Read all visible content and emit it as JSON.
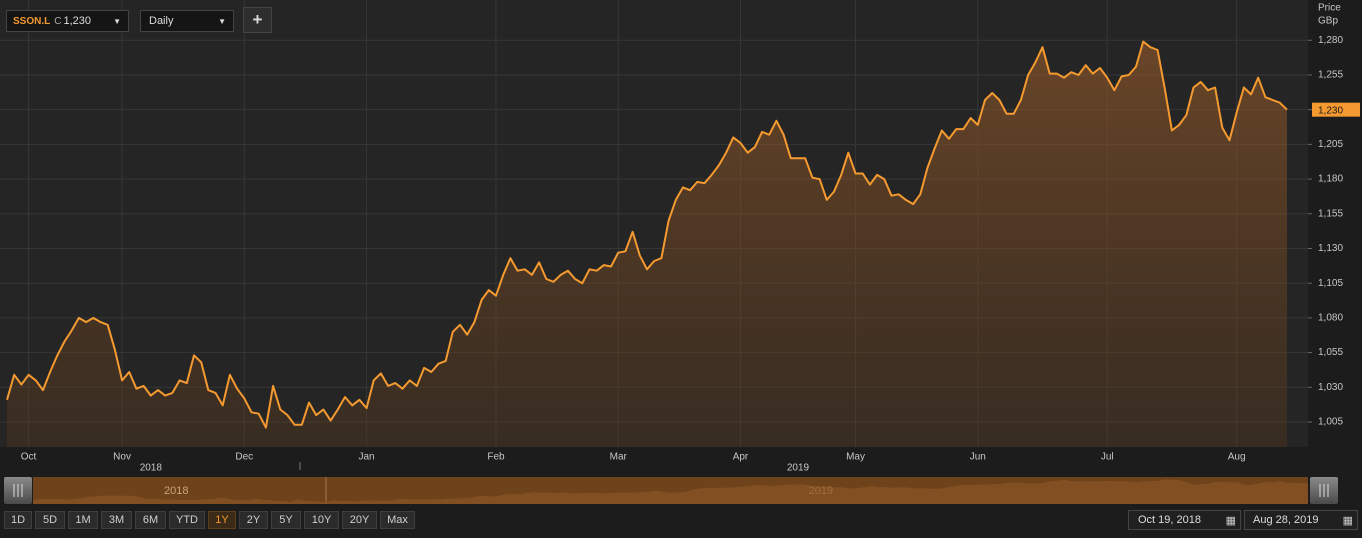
{
  "ui": {
    "close_prefix": "C",
    "interval": "Daily",
    "add_button": "+",
    "price_label": "Price",
    "currency": "GBp",
    "ranges": [
      "1D",
      "5D",
      "1M",
      "3M",
      "6M",
      "YTD",
      "1Y",
      "2Y",
      "5Y",
      "10Y",
      "20Y",
      "Max"
    ],
    "active_range": "1Y",
    "start_date": "Oct 19, 2018",
    "end_date": "Aug 28, 2019"
  },
  "chart_data": {
    "type": "line",
    "categories": [
      null,
      null,
      null,
      "Oct",
      null,
      null,
      null,
      null,
      null,
      null,
      null,
      null,
      null,
      null,
      null,
      null,
      "Nov",
      null,
      null,
      null,
      null,
      null,
      null,
      null,
      null,
      null,
      null,
      null,
      null,
      null,
      null,
      null,
      null,
      "Dec",
      null,
      null,
      null,
      null,
      null,
      null,
      null,
      null,
      null,
      null,
      null,
      null,
      null,
      null,
      null,
      null,
      "Jan",
      null,
      null,
      null,
      null,
      null,
      null,
      null,
      null,
      null,
      null,
      null,
      null,
      null,
      null,
      null,
      null,
      null,
      "Feb",
      null,
      null,
      null,
      null,
      null,
      null,
      null,
      null,
      null,
      null,
      null,
      null,
      null,
      null,
      null,
      null,
      "Mar",
      null,
      null,
      null,
      null,
      null,
      null,
      null,
      null,
      null,
      null,
      null,
      null,
      null,
      null,
      null,
      null,
      "Apr",
      null,
      null,
      null,
      null,
      null,
      null,
      null,
      null,
      null,
      null,
      null,
      null,
      null,
      null,
      null,
      "May",
      null,
      null,
      null,
      null,
      null,
      null,
      null,
      null,
      null,
      null,
      null,
      null,
      null,
      null,
      null,
      null,
      "Jun",
      null,
      null,
      null,
      null,
      null,
      null,
      null,
      null,
      null,
      null,
      null,
      null,
      null,
      null,
      null,
      null,
      null,
      "Jul",
      null,
      null,
      null,
      null,
      null,
      null,
      null,
      null,
      null,
      null,
      null,
      null,
      null,
      null,
      null,
      null,
      null,
      "Aug",
      null,
      null,
      null,
      null,
      null,
      null,
      null
    ],
    "category_years": [
      null,
      null,
      null,
      null,
      null,
      null,
      null,
      null,
      null,
      null,
      null,
      null,
      null,
      null,
      null,
      null,
      null,
      null,
      null,
      null,
      "2018",
      null,
      null,
      null,
      null,
      null,
      null,
      null,
      null,
      null,
      null,
      null,
      null,
      null,
      null,
      null,
      null,
      null,
      null,
      null,
      null,
      null,
      null,
      null,
      null,
      null,
      null,
      null,
      null,
      null,
      null,
      null,
      null,
      null,
      null,
      null,
      null,
      null,
      null,
      null,
      null,
      null,
      null,
      null,
      null,
      null,
      null,
      null,
      null,
      null,
      null,
      null,
      null,
      null,
      null,
      null,
      null,
      null,
      null,
      null,
      null,
      null,
      null,
      null,
      null,
      null,
      null,
      null,
      null,
      null,
      null,
      null,
      null,
      null,
      null,
      null,
      null,
      null,
      null,
      null,
      null,
      null,
      null,
      null,
      null,
      null,
      null,
      null,
      null,
      null,
      "2019",
      null,
      null,
      null,
      null,
      null,
      null,
      null,
      null,
      null,
      null,
      null,
      null,
      null,
      null,
      null,
      null,
      null,
      null,
      null,
      null,
      null,
      null,
      null,
      null,
      null,
      null,
      null,
      null,
      null,
      null,
      null,
      null,
      null,
      null,
      null,
      null,
      null,
      null,
      null,
      null,
      null,
      null,
      null,
      null,
      null,
      null,
      null,
      null,
      null,
      null,
      null,
      null,
      null,
      null,
      null,
      null,
      null,
      null,
      null,
      null,
      null,
      null,
      null,
      null,
      null,
      null,
      null,
      null
    ],
    "series": [
      {
        "name": "SSON.L",
        "color": "#f59a30",
        "values": [
          1021,
          1039,
          1032,
          1039,
          1035,
          1028,
          1041,
          1053,
          1063,
          1071,
          1080,
          1077,
          1080,
          1077,
          1075,
          1057,
          1035,
          1041,
          1029,
          1031,
          1024,
          1028,
          1024,
          1026,
          1035,
          1033,
          1053,
          1048,
          1028,
          1026,
          1017,
          1039,
          1029,
          1022,
          1012,
          1011,
          1001,
          1031,
          1014,
          1010,
          1003,
          1003,
          1019,
          1010,
          1014,
          1006,
          1014,
          1023,
          1017,
          1021,
          1015,
          1035,
          1040,
          1031,
          1033,
          1029,
          1035,
          1031,
          1044,
          1041,
          1047,
          1049,
          1070,
          1075,
          1068,
          1077,
          1093,
          1100,
          1096,
          1111,
          1123,
          1114,
          1115,
          1111,
          1120,
          1108,
          1106,
          1111,
          1114,
          1108,
          1105,
          1115,
          1114,
          1118,
          1117,
          1127,
          1128,
          1142,
          1125,
          1115,
          1121,
          1123,
          1150,
          1165,
          1174,
          1172,
          1178,
          1177,
          1183,
          1190,
          1199,
          1210,
          1206,
          1199,
          1203,
          1214,
          1212,
          1222,
          1212,
          1195,
          1195,
          1195,
          1181,
          1180,
          1165,
          1171,
          1183,
          1199,
          1184,
          1184,
          1176,
          1183,
          1180,
          1168,
          1169,
          1165,
          1162,
          1169,
          1188,
          1202,
          1215,
          1209,
          1216,
          1216,
          1224,
          1219,
          1237,
          1242,
          1237,
          1227,
          1227,
          1237,
          1255,
          1264,
          1275,
          1256,
          1256,
          1253,
          1257,
          1255,
          1262,
          1256,
          1260,
          1253,
          1244,
          1254,
          1255,
          1261,
          1279,
          1275,
          1273,
          1245,
          1215,
          1219,
          1226,
          1246,
          1250,
          1244,
          1246,
          1217,
          1208,
          1228,
          1246,
          1241,
          1253,
          1239,
          1237,
          1235,
          1230
        ]
      }
    ],
    "ylim": [
      987,
      1309
    ],
    "yticks": [
      {
        "value": 1005,
        "label": "1,005"
      },
      {
        "value": 1030,
        "label": "1,030"
      },
      {
        "value": 1055,
        "label": "1,055"
      },
      {
        "value": 1080,
        "label": "1,080"
      },
      {
        "value": 1105,
        "label": "1,105"
      },
      {
        "value": 1130,
        "label": "1,130"
      },
      {
        "value": 1155,
        "label": "1,155"
      },
      {
        "value": 1180,
        "label": "1,180"
      },
      {
        "value": 1205,
        "label": "1,205"
      },
      {
        "value": 1230,
        "label": "1,230"
      },
      {
        "value": 1255,
        "label": "1,255"
      },
      {
        "value": 1280,
        "label": "1,280"
      }
    ],
    "grid": true,
    "last_label": "1,230"
  }
}
